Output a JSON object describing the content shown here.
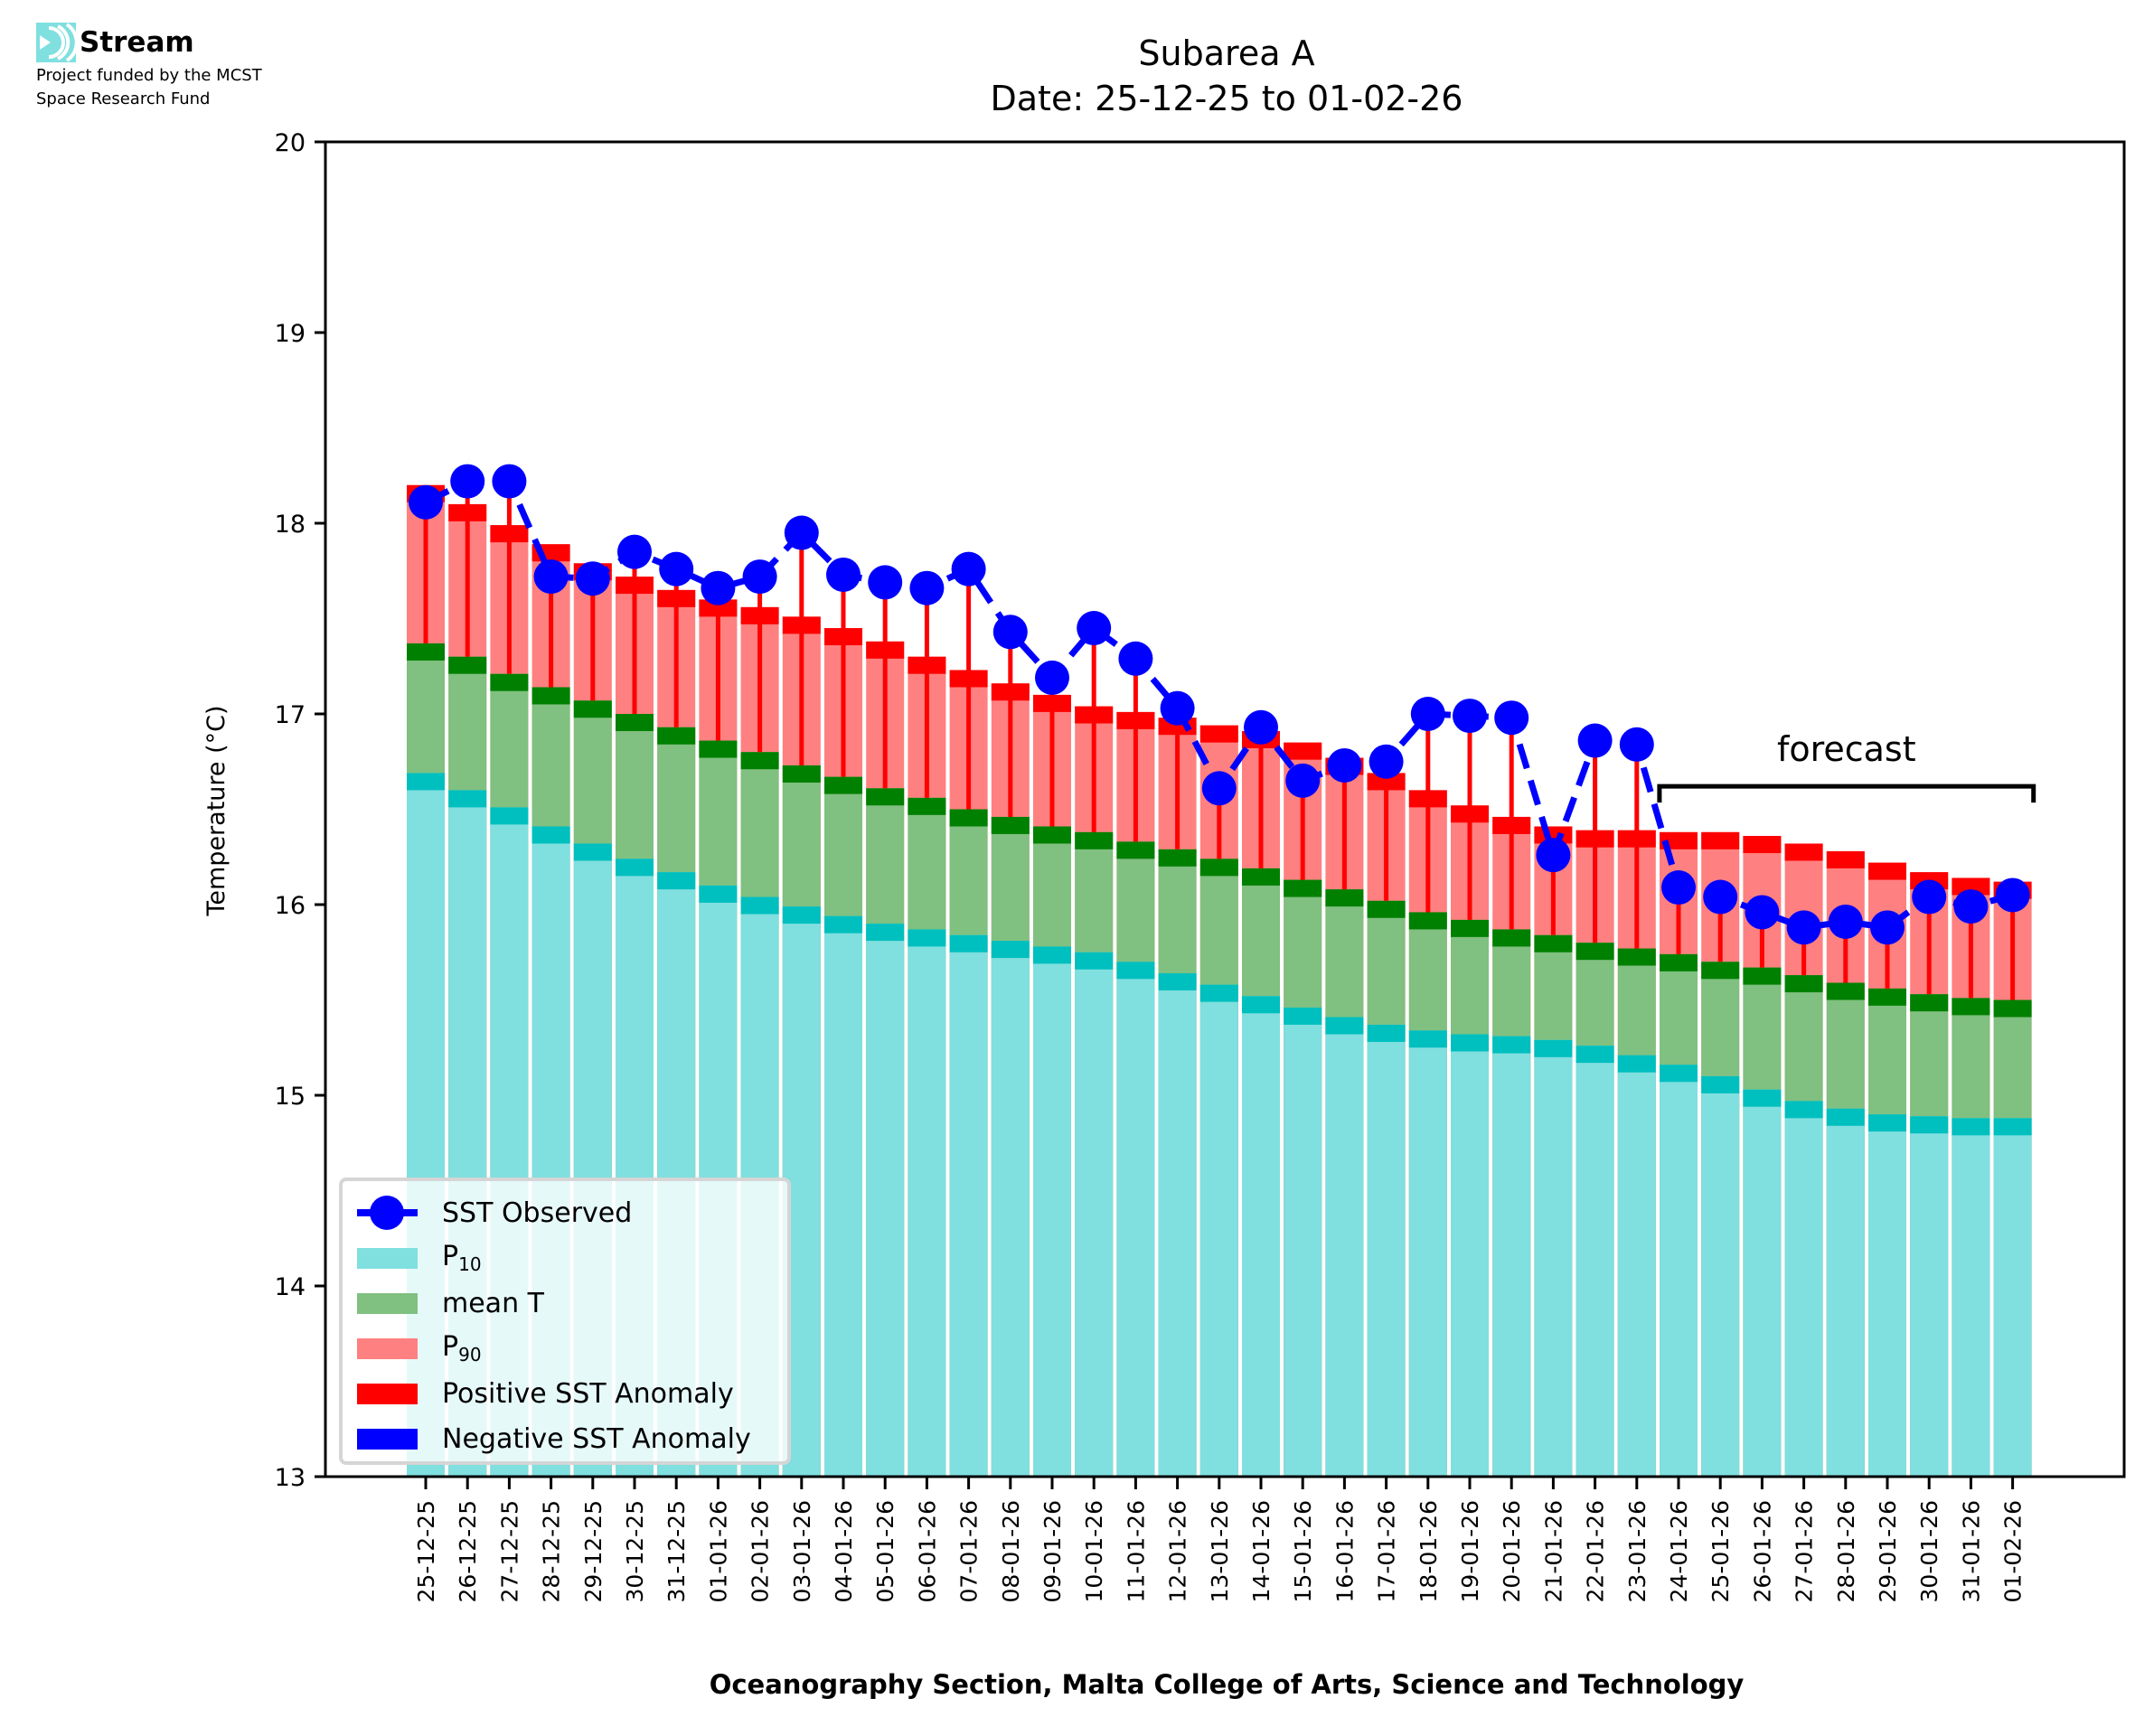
{
  "logo": {
    "name": "Stream",
    "line1": "Project funded by the MCST",
    "line2": "Space Research Fund"
  },
  "chart_data": {
    "type": "bar",
    "title": "Subarea A",
    "subtitle": "Date: 25-12-25 to 01-02-26",
    "xlabel": "Oceanography Section, Malta College of Arts, Science and Technology",
    "ylabel": "Temperature (°C)",
    "ylim": [
      13,
      20
    ],
    "yticks": [
      13,
      14,
      15,
      16,
      17,
      18,
      19,
      20
    ],
    "grid": false,
    "legend_position": "bottom-left",
    "annotation": {
      "text": "forecast",
      "from_index": 30,
      "to_index": 38
    },
    "categories": [
      "25-12-25",
      "26-12-25",
      "27-12-25",
      "28-12-25",
      "29-12-25",
      "30-12-25",
      "31-12-25",
      "01-01-26",
      "02-01-26",
      "03-01-26",
      "04-01-26",
      "05-01-26",
      "06-01-26",
      "07-01-26",
      "08-01-26",
      "09-01-26",
      "10-01-26",
      "11-01-26",
      "12-01-26",
      "13-01-26",
      "14-01-26",
      "15-01-26",
      "16-01-26",
      "17-01-26",
      "18-01-26",
      "19-01-26",
      "20-01-26",
      "21-01-26",
      "22-01-26",
      "23-01-26",
      "24-01-26",
      "25-01-26",
      "26-01-26",
      "27-01-26",
      "28-01-26",
      "29-01-26",
      "30-01-26",
      "31-01-26",
      "01-02-26"
    ],
    "series": [
      {
        "name": "SST Observed",
        "kind": "line",
        "color": "#0000ff",
        "values": [
          18.11,
          18.22,
          18.22,
          17.72,
          17.71,
          17.85,
          17.76,
          17.66,
          17.72,
          17.95,
          17.73,
          17.69,
          17.66,
          17.76,
          17.43,
          17.19,
          17.45,
          17.29,
          17.03,
          16.61,
          16.93,
          16.65,
          16.73,
          16.75,
          17.0,
          16.99,
          16.98,
          16.26,
          16.86,
          16.84,
          16.09,
          16.04,
          15.96,
          15.88,
          15.91,
          15.88,
          16.04,
          15.99,
          16.05
        ]
      },
      {
        "name": "P10",
        "label_main": "P",
        "label_sub": "10",
        "kind": "bar",
        "color": "#80dfdf",
        "edge_color": "#00bfbf",
        "values": [
          16.69,
          16.6,
          16.51,
          16.41,
          16.32,
          16.24,
          16.17,
          16.1,
          16.04,
          15.99,
          15.94,
          15.9,
          15.87,
          15.84,
          15.81,
          15.78,
          15.75,
          15.7,
          15.64,
          15.58,
          15.52,
          15.46,
          15.41,
          15.37,
          15.34,
          15.32,
          15.31,
          15.29,
          15.26,
          15.21,
          15.16,
          15.1,
          15.03,
          14.97,
          14.93,
          14.9,
          14.89,
          14.88,
          14.88
        ]
      },
      {
        "name": "mean T",
        "kind": "bar",
        "color": "#80c080",
        "edge_color": "#008000",
        "values": [
          17.37,
          17.3,
          17.21,
          17.14,
          17.07,
          17.0,
          16.93,
          16.86,
          16.8,
          16.73,
          16.67,
          16.61,
          16.56,
          16.5,
          16.46,
          16.41,
          16.38,
          16.33,
          16.29,
          16.24,
          16.19,
          16.13,
          16.08,
          16.02,
          15.96,
          15.92,
          15.87,
          15.84,
          15.8,
          15.77,
          15.74,
          15.7,
          15.67,
          15.63,
          15.59,
          15.56,
          15.53,
          15.51,
          15.5
        ]
      },
      {
        "name": "P90",
        "label_main": "P",
        "label_sub": "90",
        "kind": "bar",
        "color": "#ff8080",
        "edge_color": "#ff0000",
        "values": [
          18.2,
          18.1,
          17.99,
          17.89,
          17.79,
          17.72,
          17.65,
          17.6,
          17.56,
          17.51,
          17.45,
          17.38,
          17.3,
          17.23,
          17.16,
          17.1,
          17.04,
          17.01,
          16.98,
          16.94,
          16.91,
          16.85,
          16.77,
          16.69,
          16.6,
          16.52,
          16.46,
          16.41,
          16.39,
          16.39,
          16.38,
          16.38,
          16.36,
          16.32,
          16.28,
          16.22,
          16.17,
          16.14,
          16.12
        ]
      }
    ],
    "legend": [
      {
        "label": "SST Observed",
        "type": "marker",
        "color": "#0000ff"
      },
      {
        "label": "P",
        "sub": "10",
        "type": "patch",
        "color": "#80dfdf"
      },
      {
        "label": "mean T",
        "type": "patch",
        "color": "#80c080"
      },
      {
        "label": "P",
        "sub": "90",
        "type": "patch",
        "color": "#ff8080"
      },
      {
        "label": "Positive SST Anomaly",
        "type": "patch",
        "color": "#ff0000"
      },
      {
        "label": "Negative SST Anomaly",
        "type": "patch",
        "color": "#0000ff"
      }
    ],
    "anomaly_colors": {
      "positive": "#ff0000",
      "negative": "#0000ff"
    }
  }
}
